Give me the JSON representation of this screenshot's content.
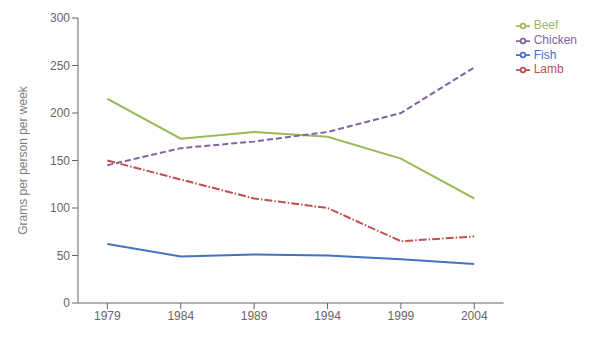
{
  "chart_data": {
    "type": "line",
    "x": [
      1979,
      1984,
      1989,
      1994,
      1999,
      2004
    ],
    "xlim": [
      1977,
      2006
    ],
    "xticks": [
      1979,
      1984,
      1989,
      1994,
      1999,
      2004
    ],
    "ylim": [
      0,
      300
    ],
    "yticks": [
      0,
      50,
      100,
      150,
      200,
      250,
      300
    ],
    "ylabel": "Grams per person per week",
    "grid": false,
    "legend": "upper right",
    "series": [
      {
        "name": "Fish",
        "color": "#4472C4",
        "line_style": "solid",
        "values": [
          62,
          49,
          51,
          50,
          46,
          41
        ]
      },
      {
        "name": "Lamb",
        "color": "#C0504D",
        "line_style": "dashdot",
        "values": [
          150,
          130,
          110,
          100,
          65,
          70
        ]
      },
      {
        "name": "Beef",
        "color": "#9BBB59",
        "line_style": "solid",
        "values": [
          215,
          173,
          180,
          175,
          152,
          110
        ]
      },
      {
        "name": "Chicken",
        "color": "#8064A2",
        "line_style": "dashed",
        "values": [
          145,
          163,
          170,
          180,
          200,
          248
        ]
      }
    ]
  }
}
